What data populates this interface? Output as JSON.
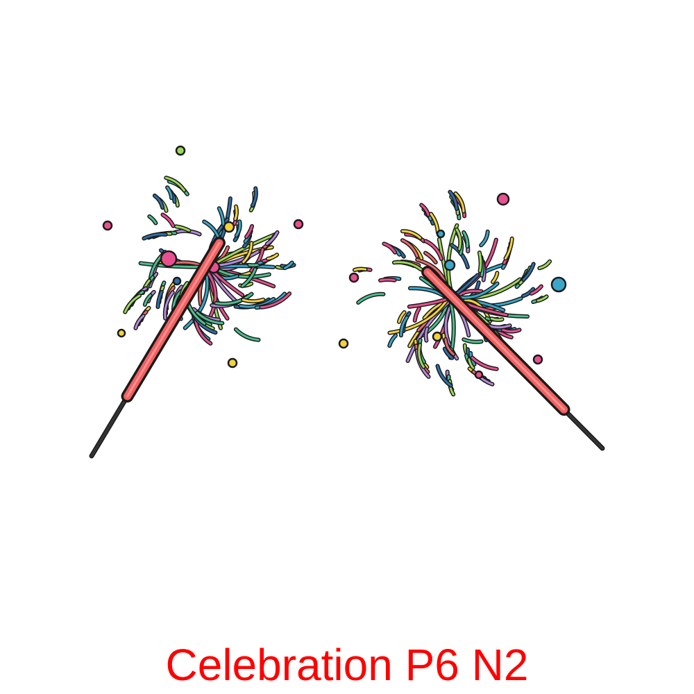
{
  "caption": {
    "text": "Celebration P6 N2",
    "color": "#ff0000"
  },
  "illustration": {
    "subject": "sparkler-icon",
    "sparklers": [
      {
        "name": "left-sparkler"
      },
      {
        "name": "right-sparkler"
      }
    ],
    "colors": {
      "outline": "#1a1a1a",
      "stick": "#333333",
      "stick_body": "#f26060",
      "stick_highlight": "#ffb3b3",
      "spark_palette": [
        "#3aa7c9",
        "#e8518f",
        "#f2d33a",
        "#e86a6a",
        "#b58ad8",
        "#4bbf8f",
        "#9ed85a",
        "#2f6fa8"
      ],
      "background": "#ffffff"
    }
  }
}
